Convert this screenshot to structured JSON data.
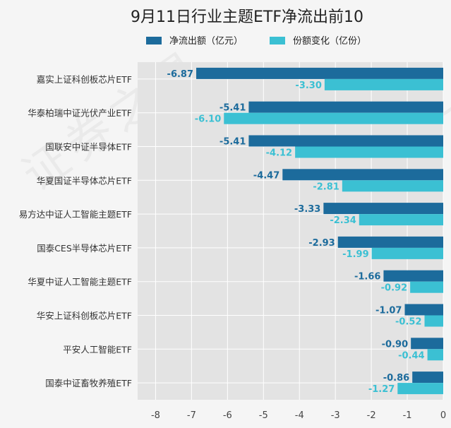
{
  "chart_data": {
    "type": "bar",
    "orientation": "horizontal",
    "title": "9月11日行业主题ETF净流出前10",
    "categories": [
      "嘉实上证科创板芯片ETF",
      "华泰柏瑞中证光伏产业ETF",
      "国联安中证半导体ETF",
      "华夏国证半导体芯片ETF",
      "易方达中证人工智能主题ETF",
      "国泰CES半导体芯片ETF",
      "华夏中证人工智能主题ETF",
      "华安上证科创板芯片ETF",
      "平安人工智能ETF",
      "国泰中证畜牧养殖ETF"
    ],
    "series": [
      {
        "name": "净流出额（亿元）",
        "color": "#1c6b9c",
        "values": [
          -6.87,
          -5.41,
          -5.41,
          -4.47,
          -3.33,
          -2.93,
          -1.66,
          -1.07,
          -0.9,
          -0.86
        ],
        "labels": [
          "-6.87",
          "-5.41",
          "-5.41",
          "-4.47",
          "-3.33",
          "-2.93",
          "-1.66",
          "-1.07",
          "-0.90",
          "-0.86"
        ]
      },
      {
        "name": "份额变化（亿份）",
        "color": "#3bc0d3",
        "values": [
          -3.3,
          -6.1,
          -4.12,
          -2.81,
          -2.34,
          -1.99,
          -0.92,
          -0.52,
          -0.44,
          -1.27
        ],
        "labels": [
          "-3.30",
          "-6.10",
          "-4.12",
          "-2.81",
          "-2.34",
          "-1.99",
          "-0.92",
          "-0.52",
          "-0.44",
          "-1.27"
        ]
      }
    ],
    "xlim": [
      -8.5,
      0
    ],
    "xticks": [
      -8,
      -7,
      -6,
      -5,
      -4,
      -3,
      -2,
      -1,
      0
    ],
    "xticklabels": [
      "-8",
      "-7",
      "-6",
      "-5",
      "-4",
      "-3",
      "-2",
      "-1",
      "0"
    ],
    "grid": true,
    "legend": "top-center",
    "xlabel": "",
    "ylabel": ""
  },
  "watermark": "证券之星"
}
